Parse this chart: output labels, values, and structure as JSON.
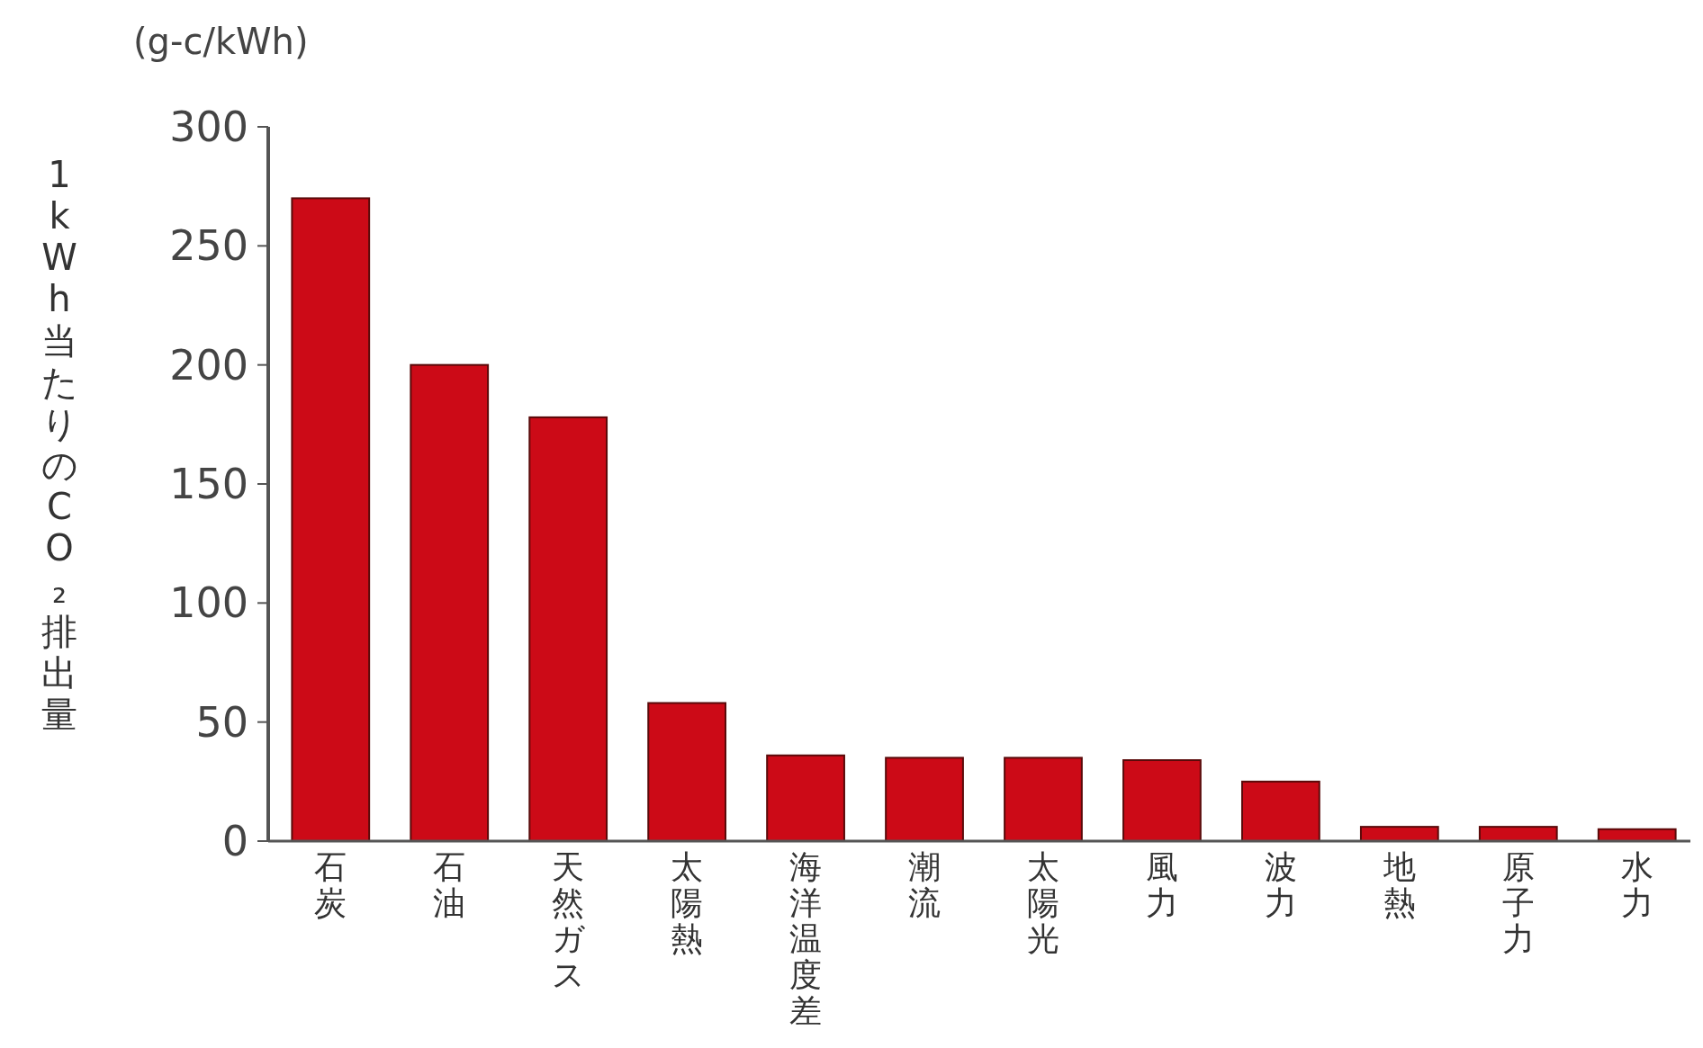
{
  "chart_data": {
    "type": "bar",
    "ylabel": "1kWh当たりのCO₂排出量",
    "annotations": [
      "(g-c/kWh)"
    ],
    "categories": [
      "石炭",
      "石油",
      "天然ガス",
      "太陽熱",
      "海洋温度差",
      "潮流",
      "太陽光",
      "風力",
      "波力",
      "地熱",
      "原子力",
      "水力"
    ],
    "values": [
      270,
      200,
      178,
      58,
      36,
      35,
      35,
      34,
      25,
      6,
      6,
      5
    ],
    "color": "#cc0a17",
    "ylim": [
      0,
      300
    ],
    "yticks": [
      0,
      50,
      100,
      150,
      200,
      250,
      300
    ],
    "grid": false
  }
}
